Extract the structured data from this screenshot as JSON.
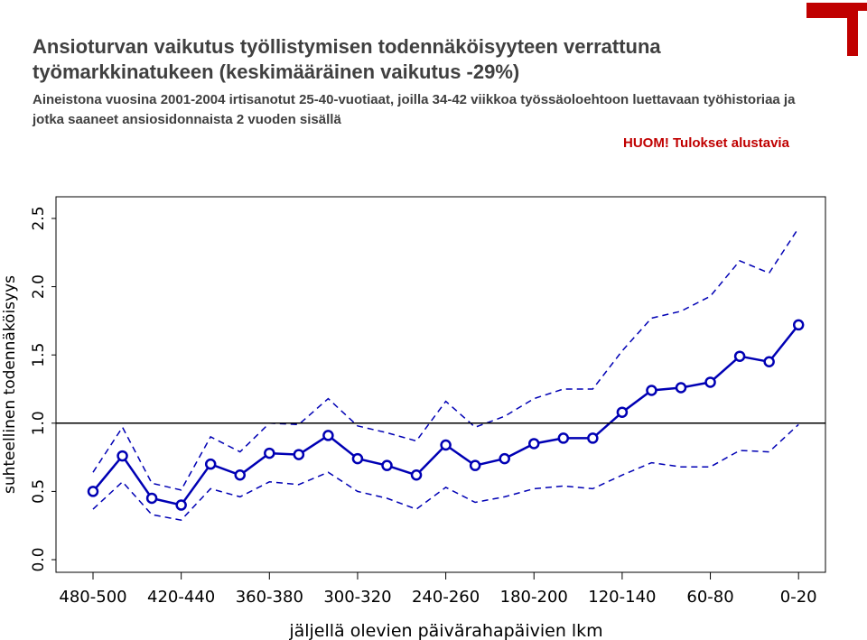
{
  "header": {
    "title": "Ansioturvan vaikutus työllistymisen todennäköisyyteen verrattuna työmarkkinatukeen (keskimääräinen vaikutus -29%)",
    "subtitle": "Aineistona vuosina 2001-2004 irtisanotut 25-40-vuotiaat, joilla 34-42 viikkoa työssäoloehtoon luettavaan työhistoriaa ja jotka saaneet ansiosidonnaista 2 vuoden sisällä",
    "note": "HUOM! Tulokset alustavia"
  },
  "colors": {
    "series": "#0000b4",
    "note": "#c00000",
    "reference_line": "#000000",
    "decoration": "#c00000"
  },
  "chart_data": {
    "type": "line",
    "xlabel": "jäljellä olevien päivärahapäivien lkm",
    "ylabel": "suhteellinen todennäköisyys",
    "ylim": [
      0,
      2.5
    ],
    "yticks": [
      "0.0",
      "0.5",
      "1.0",
      "1.5",
      "2.0",
      "2.5"
    ],
    "xtick_labels": [
      "480-500",
      "420-440",
      "360-380",
      "300-320",
      "240-260",
      "180-200",
      "120-140",
      "60-80",
      "0-20"
    ],
    "reference_line": 1.0,
    "grid": false,
    "x": [
      "480-500",
      "460-480",
      "440-460",
      "420-440",
      "400-420",
      "380-400",
      "360-380",
      "340-360",
      "320-340",
      "300-320",
      "280-300",
      "260-280",
      "240-260",
      "220-240",
      "200-220",
      "180-200",
      "160-180",
      "140-160",
      "120-140",
      "100-120",
      "80-100",
      "60-80",
      "40-60",
      "20-40",
      "0-20"
    ],
    "series": [
      {
        "role": "estimate",
        "style": "solid with circle markers",
        "values": [
          0.5,
          0.76,
          0.45,
          0.4,
          0.7,
          0.62,
          0.78,
          0.77,
          0.91,
          0.74,
          0.69,
          0.62,
          0.84,
          0.69,
          0.74,
          0.85,
          0.89,
          0.89,
          1.08,
          1.24,
          1.26,
          1.3,
          1.49,
          1.45,
          1.72
        ]
      },
      {
        "role": "upper",
        "style": "dashed",
        "values": [
          0.64,
          0.97,
          0.56,
          0.51,
          0.9,
          0.79,
          1.0,
          0.99,
          1.18,
          0.98,
          0.93,
          0.87,
          1.16,
          0.97,
          1.05,
          1.18,
          1.25,
          1.25,
          1.53,
          1.77,
          1.82,
          1.93,
          2.19,
          2.1,
          2.43
        ]
      },
      {
        "role": "lower",
        "style": "dashed",
        "values": [
          0.37,
          0.57,
          0.33,
          0.29,
          0.52,
          0.46,
          0.57,
          0.55,
          0.64,
          0.5,
          0.45,
          0.37,
          0.53,
          0.42,
          0.46,
          0.52,
          0.54,
          0.52,
          0.62,
          0.71,
          0.68,
          0.68,
          0.8,
          0.79,
          0.99
        ]
      }
    ]
  }
}
